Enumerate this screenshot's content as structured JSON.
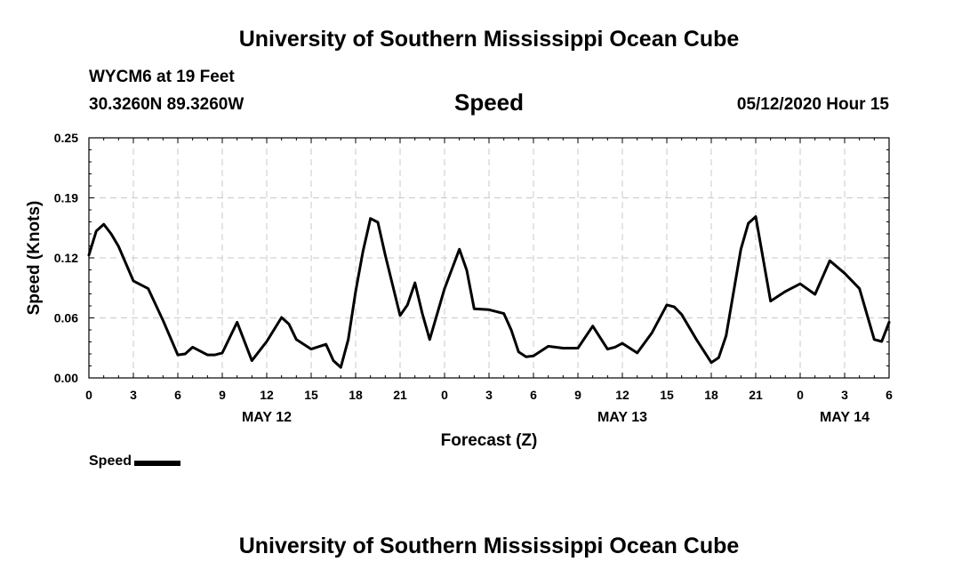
{
  "header": {
    "title": "University of Southern Mississippi Ocean Cube",
    "station": "WYCM6 at 19 Feet",
    "coords": "30.3260N 89.3260W",
    "variable": "Speed",
    "datetime": "05/12/2020 Hour 15"
  },
  "footer": {
    "title": "University of Southern Mississippi Ocean Cube"
  },
  "legend": {
    "label": "Speed"
  },
  "chart_data": {
    "type": "line",
    "ylabel": "Speed (Knots)",
    "xlabel": "Forecast (Z)",
    "xlim": [
      0,
      54
    ],
    "ylim": [
      0,
      0.25
    ],
    "grid": true,
    "y_ticks": [
      "0.00",
      "0.06",
      "0.12",
      "0.19",
      "0.25"
    ],
    "y_tick_values": [
      0,
      0.0625,
      0.125,
      0.1875,
      0.25
    ],
    "x_ticks": [
      "0",
      "3",
      "6",
      "9",
      "12",
      "15",
      "18",
      "21",
      "0",
      "3",
      "6",
      "9",
      "12",
      "15",
      "18",
      "21",
      "0",
      "3",
      "6"
    ],
    "x_tick_values": [
      0,
      3,
      6,
      9,
      12,
      15,
      18,
      21,
      24,
      27,
      30,
      33,
      36,
      39,
      42,
      45,
      48,
      51,
      54
    ],
    "day_labels": [
      {
        "label": "MAY 12",
        "x": 12
      },
      {
        "label": "MAY 13",
        "x": 36
      },
      {
        "label": "MAY 14",
        "x": 51
      }
    ],
    "series": [
      {
        "name": "Speed",
        "color": "#000000",
        "x": [
          0,
          0.5,
          1,
          1.5,
          2,
          3,
          4,
          5,
          6,
          6.5,
          7,
          8,
          8.5,
          9,
          10,
          11,
          12,
          13,
          13.5,
          14,
          15,
          16,
          16.5,
          17,
          17.5,
          18,
          18.5,
          19,
          19.5,
          20,
          21,
          21.5,
          22,
          22.5,
          23,
          24,
          25,
          25.5,
          26,
          27,
          28,
          28.5,
          29,
          29.5,
          30,
          31,
          32,
          33,
          34,
          35,
          35.5,
          36,
          37,
          38,
          39,
          39.5,
          40,
          41,
          42,
          42.5,
          43,
          44,
          44.5,
          45,
          46,
          47,
          48,
          49,
          50,
          51,
          52,
          53,
          53.5,
          54
        ],
        "values": [
          0.128,
          0.153,
          0.16,
          0.15,
          0.137,
          0.101,
          0.093,
          0.06,
          0.024,
          0.025,
          0.032,
          0.024,
          0.024,
          0.026,
          0.058,
          0.018,
          0.038,
          0.063,
          0.056,
          0.04,
          0.03,
          0.035,
          0.018,
          0.011,
          0.04,
          0.09,
          0.132,
          0.166,
          0.162,
          0.128,
          0.065,
          0.076,
          0.099,
          0.067,
          0.04,
          0.093,
          0.134,
          0.112,
          0.072,
          0.071,
          0.067,
          0.05,
          0.027,
          0.022,
          0.023,
          0.033,
          0.031,
          0.031,
          0.054,
          0.03,
          0.032,
          0.036,
          0.026,
          0.047,
          0.076,
          0.074,
          0.066,
          0.04,
          0.016,
          0.021,
          0.044,
          0.134,
          0.161,
          0.168,
          0.08,
          0.09,
          0.098,
          0.087,
          0.122,
          0.109,
          0.093,
          0.04,
          0.038,
          0.058
        ]
      }
    ]
  }
}
